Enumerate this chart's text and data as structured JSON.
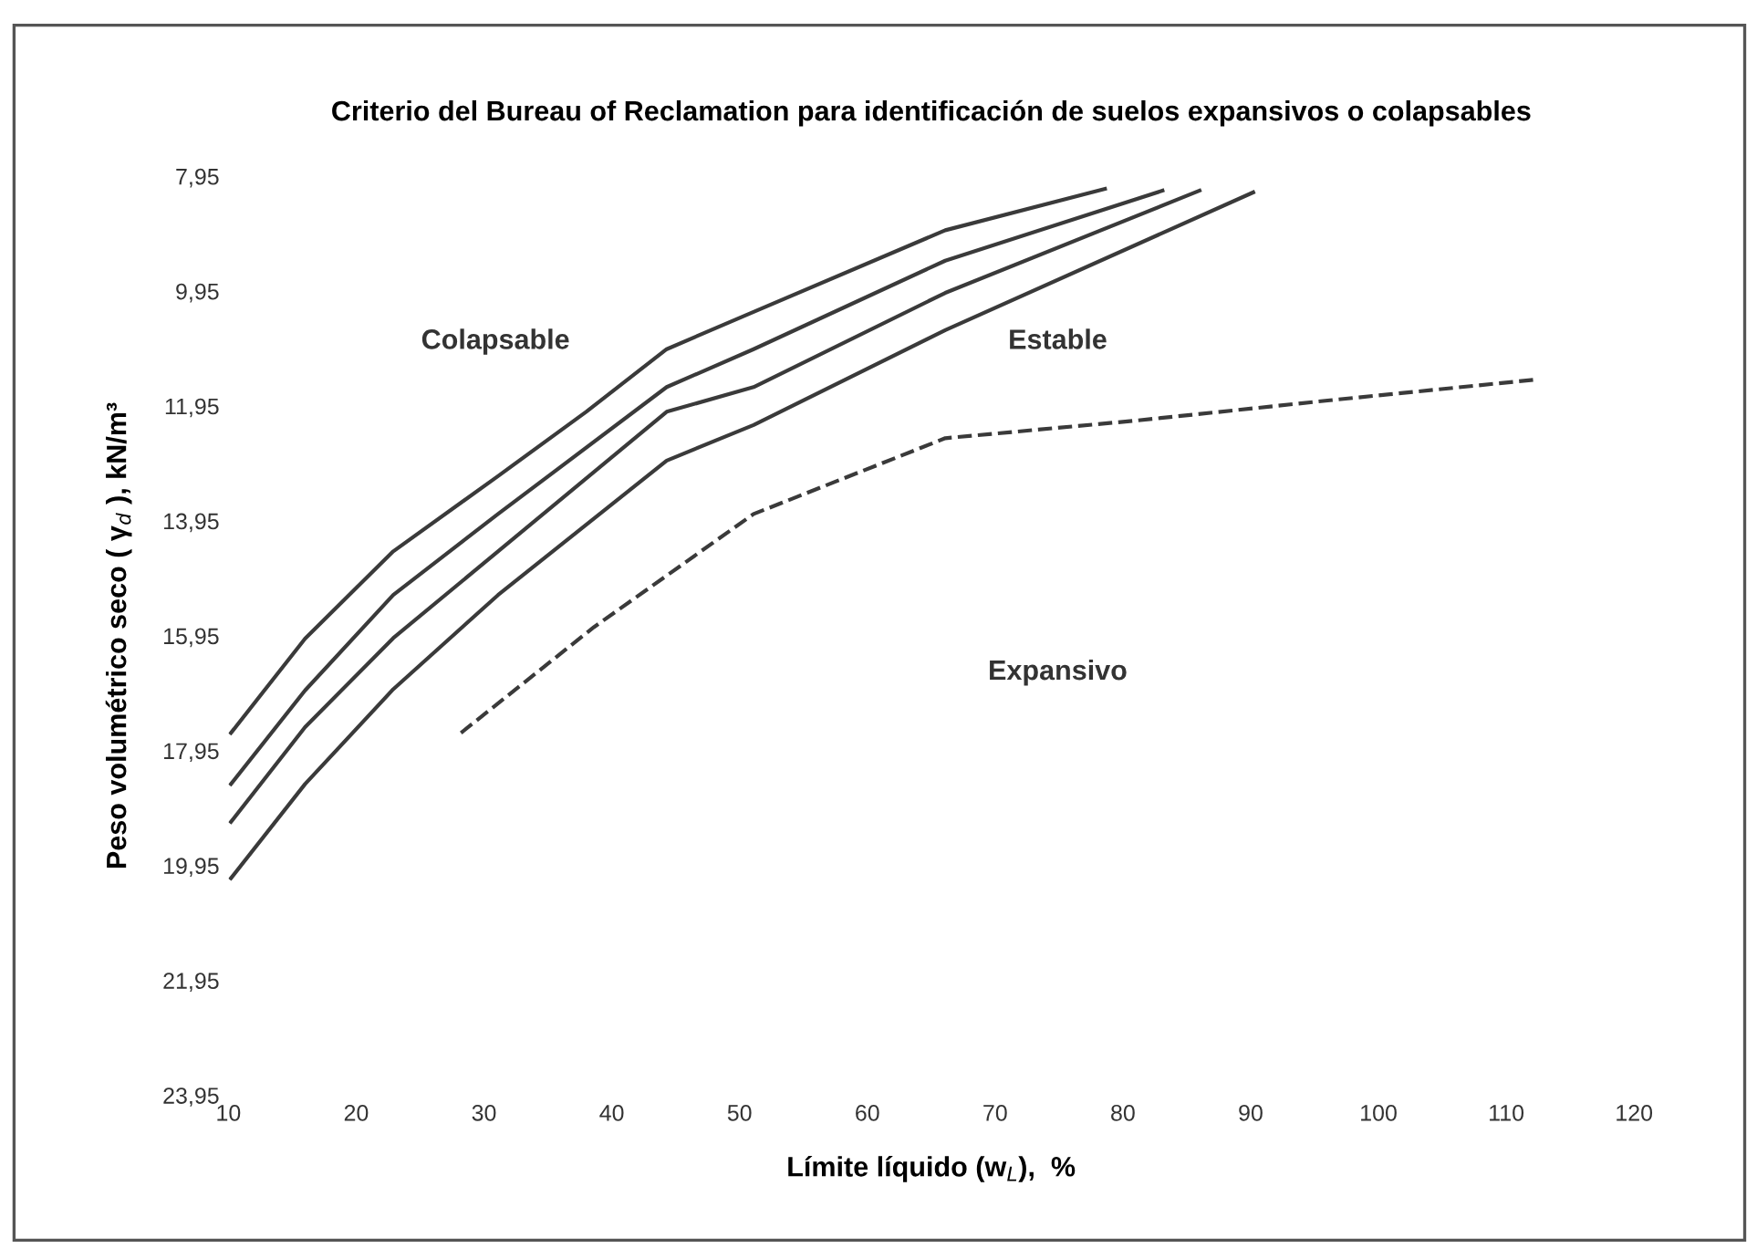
{
  "chart_data": {
    "type": "line",
    "title": "Criterio del Bureau of Reclamation para identificación de suelos expansivos o colapsables",
    "xlabel": "Límite líquido (w$_{L}$),  %",
    "ylabel": "Peso volumétrico seco ( γ$_{d}$ ), kN/m³",
    "series": [
      {
        "color": "#3a3a3a",
        "line_style": "solid",
        "x": [
          10.2,
          16.0,
          22.9,
          31.1,
          38.0,
          44.3,
          51.1,
          66.1,
          78.6
        ],
        "values": [
          17.64,
          16.0,
          14.48,
          13.17,
          12.05,
          10.96,
          10.31,
          8.89,
          8.17
        ]
      },
      {
        "color": "#3a3a3a",
        "line_style": "solid",
        "x": [
          10.2,
          16.0,
          22.9,
          31.1,
          44.3,
          51.1,
          66.1,
          83.1
        ],
        "values": [
          18.53,
          16.9,
          15.24,
          13.83,
          11.62,
          10.96,
          9.42,
          8.2
        ]
      },
      {
        "color": "#3a3a3a",
        "line_style": "solid",
        "x": [
          10.2,
          16.0,
          22.9,
          31.1,
          44.3,
          51.1,
          66.1,
          86.0
        ],
        "values": [
          19.19,
          17.54,
          15.99,
          14.48,
          12.05,
          11.62,
          9.98,
          8.2
        ]
      },
      {
        "color": "#3a3a3a",
        "line_style": "solid",
        "x": [
          10.2,
          16.0,
          22.9,
          31.1,
          44.3,
          51.1,
          66.1,
          90.2
        ],
        "values": [
          20.17,
          18.53,
          16.88,
          15.24,
          12.9,
          12.28,
          10.63,
          8.23
        ]
      },
      {
        "color": "#3a3a3a",
        "line_style": "dashed",
        "x": [
          28.2,
          38.6,
          51.1,
          66.1,
          81.2,
          96.2,
          112.3
        ],
        "values": [
          17.64,
          15.8,
          13.83,
          12.51,
          12.2,
          11.85,
          11.49
        ]
      }
    ],
    "annotations": [
      "Colapsable",
      "Estable",
      "Expansivo"
    ],
    "xlim": [
      10,
      120
    ],
    "xticks": [
      10,
      20,
      30,
      40,
      50,
      60,
      70,
      80,
      90,
      100,
      110,
      120
    ],
    "ylim": [
      23.95,
      7.95
    ],
    "yticks": [
      {
        "value": 7.95,
        "label": "7,95"
      },
      {
        "value": 9.95,
        "label": "9,95"
      },
      {
        "value": 11.95,
        "label": "11,95"
      },
      {
        "value": 13.95,
        "label": "13,95"
      },
      {
        "value": 15.95,
        "label": "15,95"
      },
      {
        "value": 17.95,
        "label": "17,95"
      },
      {
        "value": 19.95,
        "label": "19,95"
      },
      {
        "value": 21.95,
        "label": "21,95"
      },
      {
        "value": 23.95,
        "label": "23,95"
      }
    ],
    "grid": false,
    "legend": false,
    "marker": "none"
  }
}
